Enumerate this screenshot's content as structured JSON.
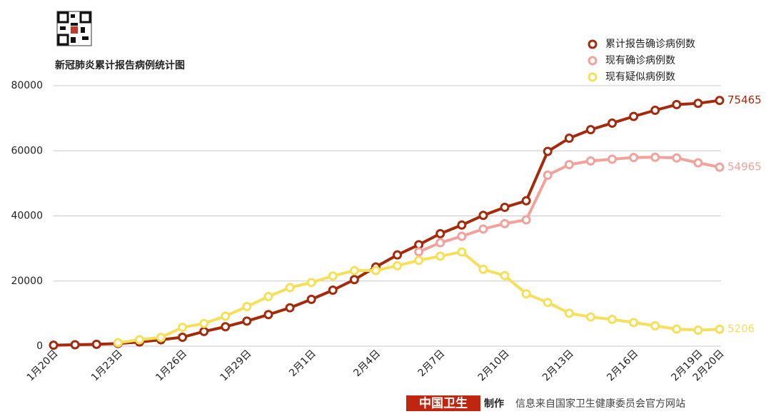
{
  "chart_data": {
    "type": "line",
    "title": "新冠肺炎累计报告病例统计图",
    "categories": [
      "1月20日",
      null,
      null,
      "1月23日",
      null,
      null,
      "1月26日",
      null,
      null,
      "1月29日",
      null,
      null,
      "2月1日",
      null,
      null,
      "2月4日",
      null,
      null,
      "2月7日",
      null,
      null,
      "2月10日",
      null,
      null,
      "2月13日",
      null,
      null,
      "2月16日",
      null,
      null,
      "2月19日",
      "2月20日"
    ],
    "series": [
      {
        "name": "累计报告确诊病例数",
        "color": "#a5290b",
        "values": [
          291,
          440,
          571,
          830,
          1287,
          1975,
          2744,
          4515,
          5974,
          7711,
          9692,
          11791,
          14380,
          17205,
          20438,
          24324,
          28018,
          31161,
          34546,
          37198,
          40171,
          42638,
          44653,
          59804,
          63851,
          66492,
          68500,
          70548,
          72436,
          74185,
          74576,
          75465
        ]
      },
      {
        "name": "现有确诊病例数",
        "color": "#f3a29b",
        "values": [
          null,
          null,
          null,
          null,
          null,
          null,
          null,
          null,
          null,
          null,
          null,
          null,
          null,
          null,
          null,
          null,
          null,
          28985,
          31774,
          33738,
          35982,
          37626,
          38800,
          52526,
          55748,
          56873,
          57416,
          57934,
          58016,
          57805,
          56303,
          54965
        ]
      },
      {
        "name": "现有疑似病例数",
        "color": "#f6e05a",
        "values": [
          null,
          null,
          null,
          1072,
          1965,
          2684,
          5794,
          6973,
          9239,
          12167,
          15238,
          17988,
          19544,
          21558,
          23214,
          23260,
          24702,
          26359,
          27657,
          28942,
          23589,
          21675,
          16067,
          13435,
          10109,
          8969,
          8228,
          7264,
          6242,
          5248,
          4922,
          5206
        ]
      }
    ],
    "ylim": [
      0,
      80000
    ],
    "yticks": [
      0,
      20000,
      40000,
      60000,
      80000
    ],
    "grid": true,
    "footer_brand": "中国卫生",
    "footer_made": "制作",
    "source": "信息来自国家卫生健康委员会官方网站"
  }
}
